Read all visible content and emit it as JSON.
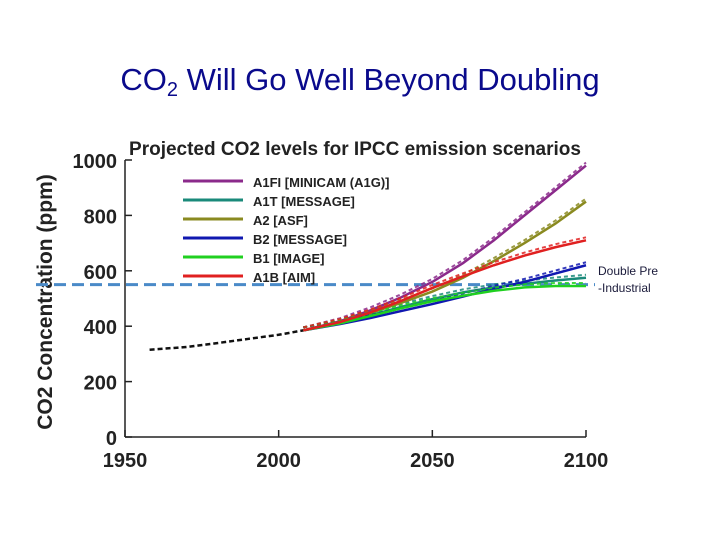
{
  "slide": {
    "title_main": "CO",
    "title_sub": "2",
    "title_rest": " Will Go Well Beyond Doubling",
    "annotation_line1": "Double Pre",
    "annotation_line2": "-Industrial"
  },
  "colors": {
    "title": "#0a0a8c",
    "A1FI": "#8b2a8b",
    "A1T": "#1a8a7a",
    "A2": "#8a8a20",
    "B2": "#1018b0",
    "B1": "#20d020",
    "A1B": "#e02020",
    "historical": "#111111",
    "doubling_line": "#4a8ac8"
  },
  "chart_data": {
    "type": "line",
    "title": "Projected CO2 levels for IPCC emission scenarios",
    "xlabel": "",
    "ylabel": "CO2 Concentration (ppm)",
    "xlim": [
      1950,
      2100
    ],
    "ylim": [
      0,
      1000
    ],
    "xticks": [
      1950,
      2000,
      2050,
      2100
    ],
    "yticks": [
      0,
      200,
      400,
      600,
      800,
      1000
    ],
    "legend_placement": "top-left",
    "historical": {
      "x": [
        1958,
        1970,
        1980,
        1990,
        2000,
        2008
      ],
      "values": [
        315,
        325,
        339,
        354,
        369,
        385
      ]
    },
    "reference_line": {
      "y": 550,
      "label": "Double Pre -Industrial"
    },
    "series": [
      {
        "name": "A1FI [MINICAM (A1G)]",
        "x": [
          2008,
          2020,
          2030,
          2040,
          2050,
          2060,
          2070,
          2080,
          2090,
          2100
        ],
        "values": [
          385,
          418,
          458,
          505,
          560,
          628,
          710,
          800,
          890,
          980
        ]
      },
      {
        "name": "A1T [MESSAGE]",
        "x": [
          2008,
          2020,
          2030,
          2040,
          2050,
          2060,
          2070,
          2080,
          2090,
          2100
        ],
        "values": [
          385,
          412,
          440,
          470,
          498,
          522,
          540,
          553,
          565,
          575
        ]
      },
      {
        "name": "A2 [ASF]",
        "x": [
          2008,
          2020,
          2030,
          2040,
          2050,
          2060,
          2070,
          2080,
          2090,
          2100
        ],
        "values": [
          385,
          415,
          448,
          485,
          525,
          575,
          635,
          700,
          770,
          850
        ]
      },
      {
        "name": "B2 [MESSAGE]",
        "x": [
          2008,
          2020,
          2030,
          2040,
          2050,
          2060,
          2070,
          2080,
          2090,
          2100
        ],
        "values": [
          385,
          408,
          430,
          455,
          480,
          507,
          535,
          560,
          590,
          620
        ]
      },
      {
        "name": "B1 [IMAGE]",
        "x": [
          2008,
          2020,
          2030,
          2040,
          2050,
          2060,
          2070,
          2080,
          2090,
          2100
        ],
        "values": [
          385,
          410,
          437,
          465,
          490,
          510,
          528,
          540,
          545,
          545
        ]
      },
      {
        "name": "A1B [AIM]",
        "x": [
          2008,
          2020,
          2030,
          2040,
          2050,
          2060,
          2070,
          2080,
          2090,
          2100
        ],
        "values": [
          385,
          415,
          450,
          492,
          538,
          580,
          620,
          655,
          685,
          710
        ]
      }
    ]
  }
}
